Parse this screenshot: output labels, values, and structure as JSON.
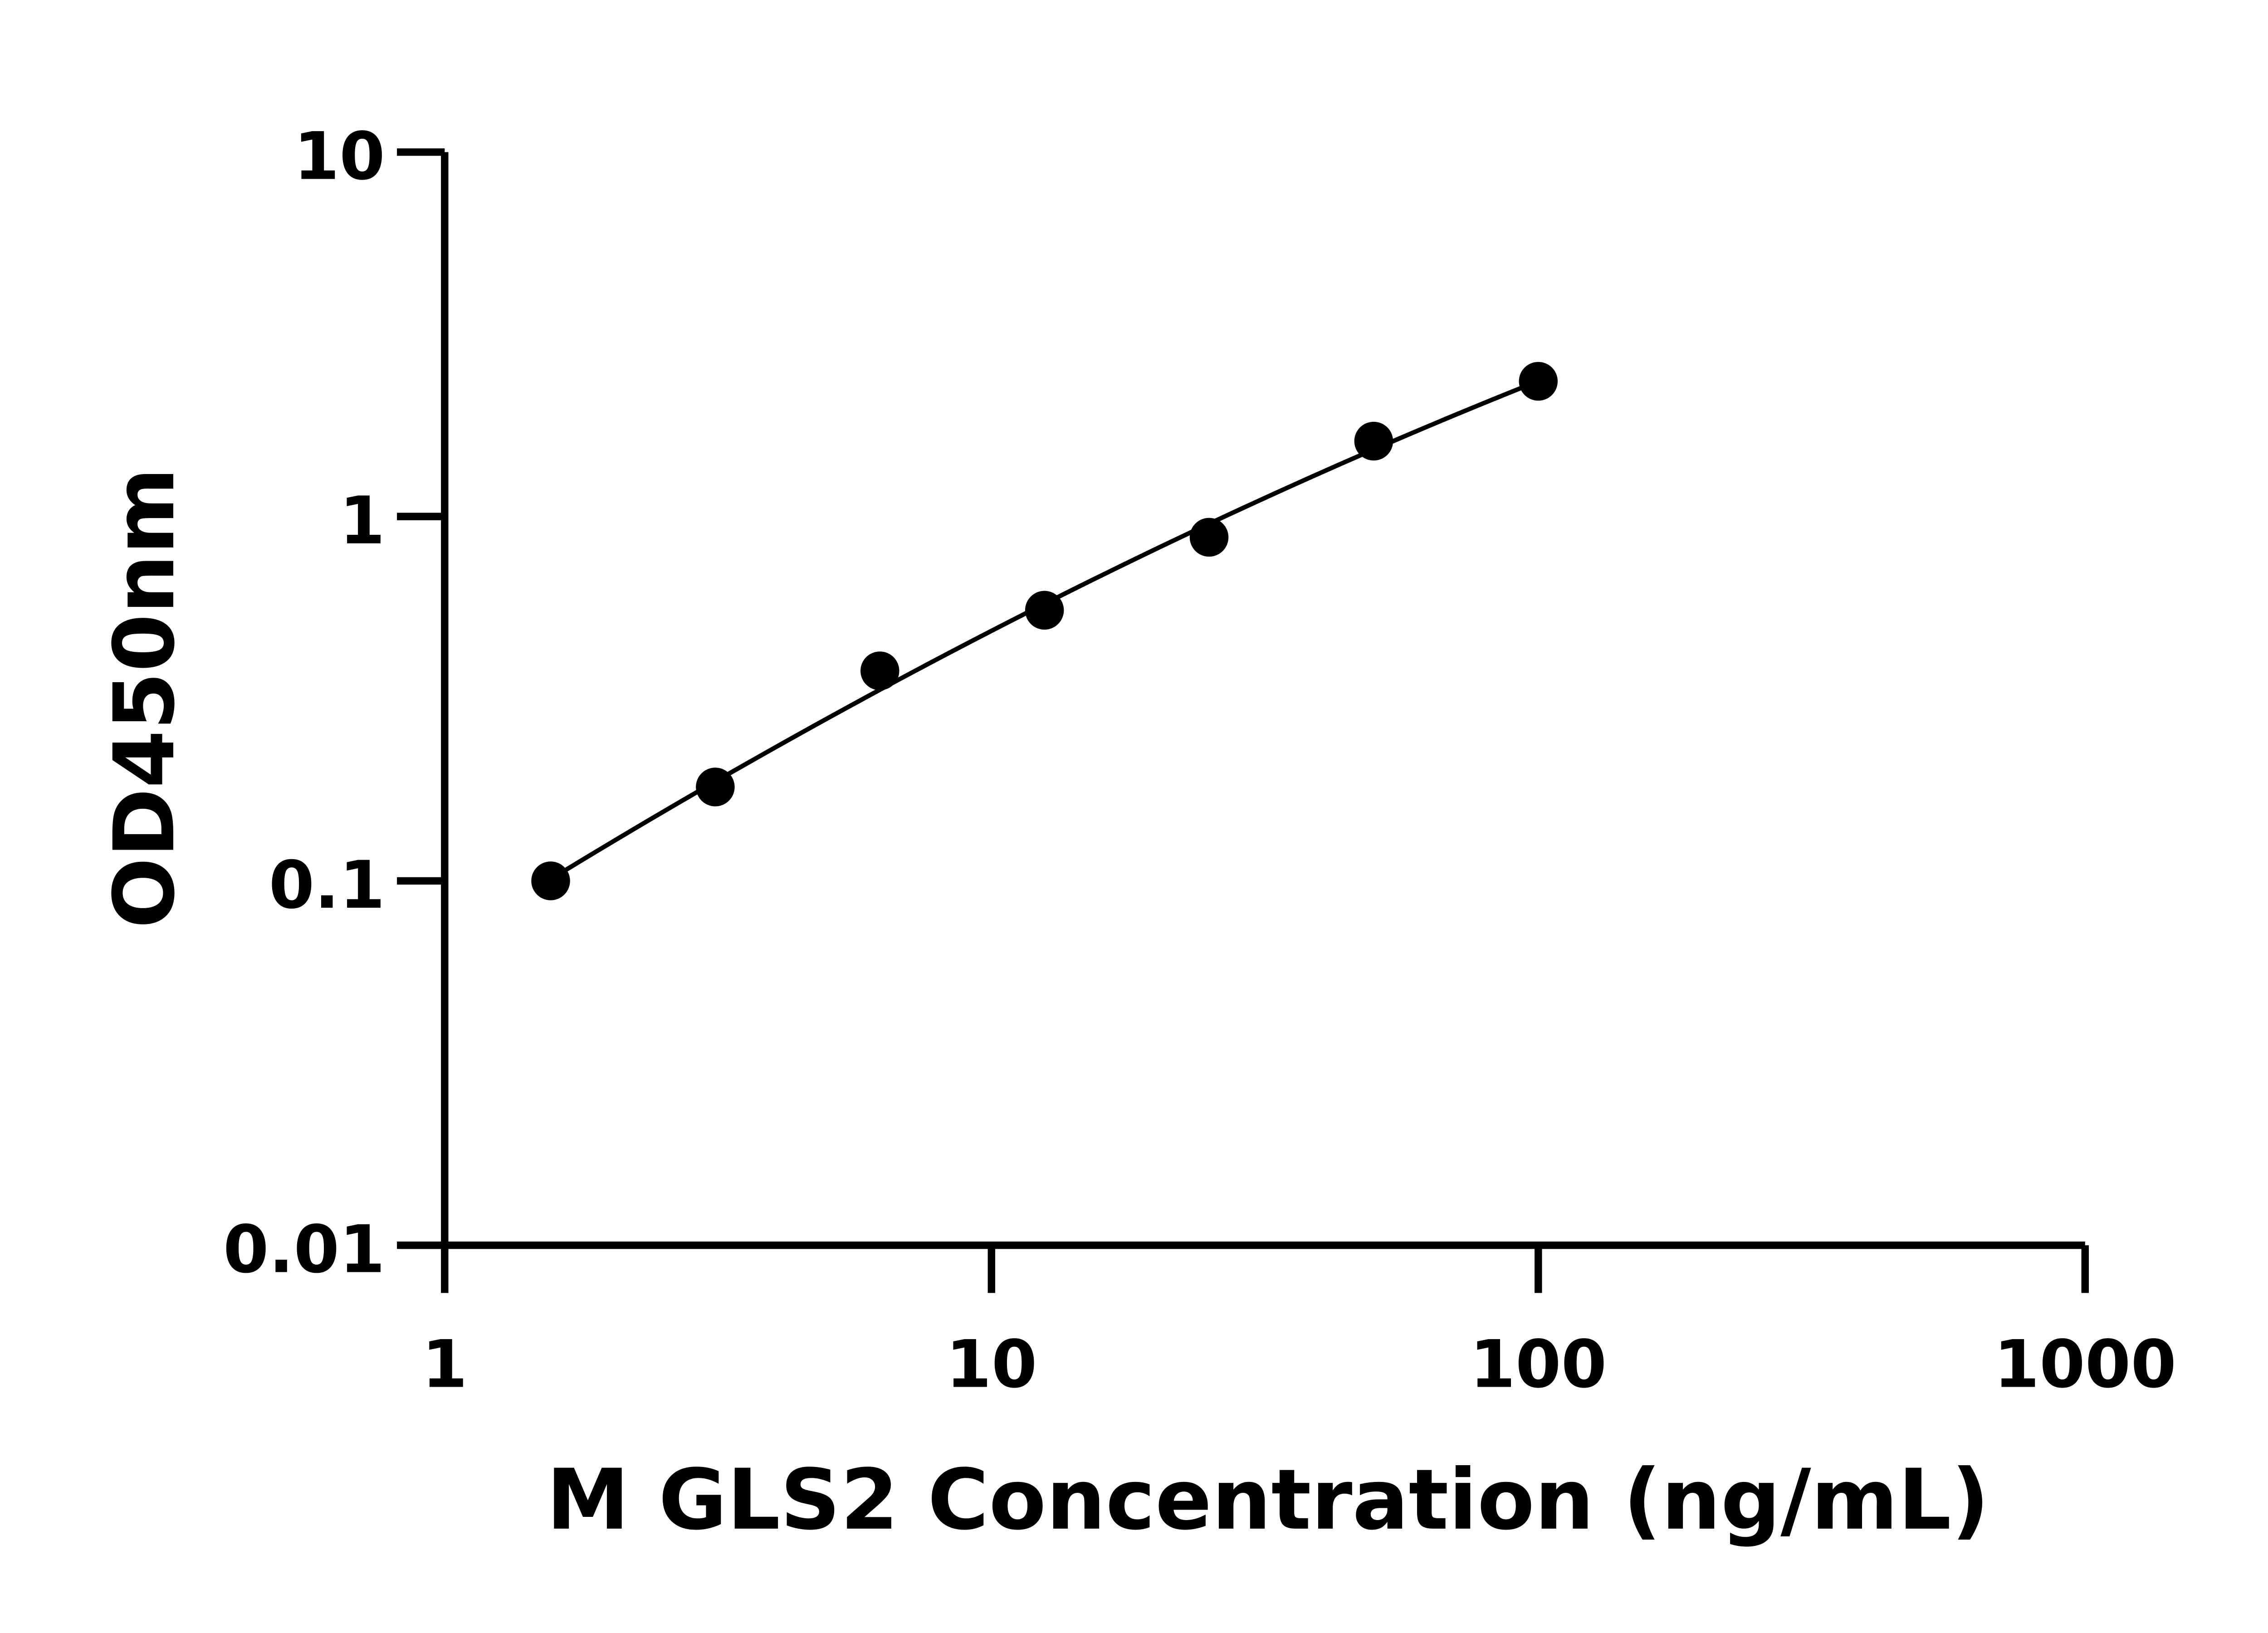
{
  "chart_data": {
    "type": "scatter",
    "title": "",
    "xlabel": "M GLS2 Concentration (ng/mL)",
    "ylabel": "OD450nm",
    "x_scale": "log",
    "y_scale": "log",
    "xlim": [
      1,
      1000
    ],
    "ylim": [
      0.01,
      10
    ],
    "x_ticks": [
      "1",
      "10",
      "100",
      "1000"
    ],
    "y_ticks": [
      "0.01",
      "0.1",
      "1",
      "10"
    ],
    "grid": false,
    "fit_line": true,
    "series": [
      {
        "x": [
          1.5625,
          3.125,
          6.25,
          12.5,
          25,
          50,
          100
        ],
        "y": [
          0.1,
          0.181,
          0.377,
          0.553,
          0.877,
          1.61,
          2.35
        ]
      }
    ],
    "colors": {
      "marker": "#000000",
      "line": "#000000"
    }
  }
}
